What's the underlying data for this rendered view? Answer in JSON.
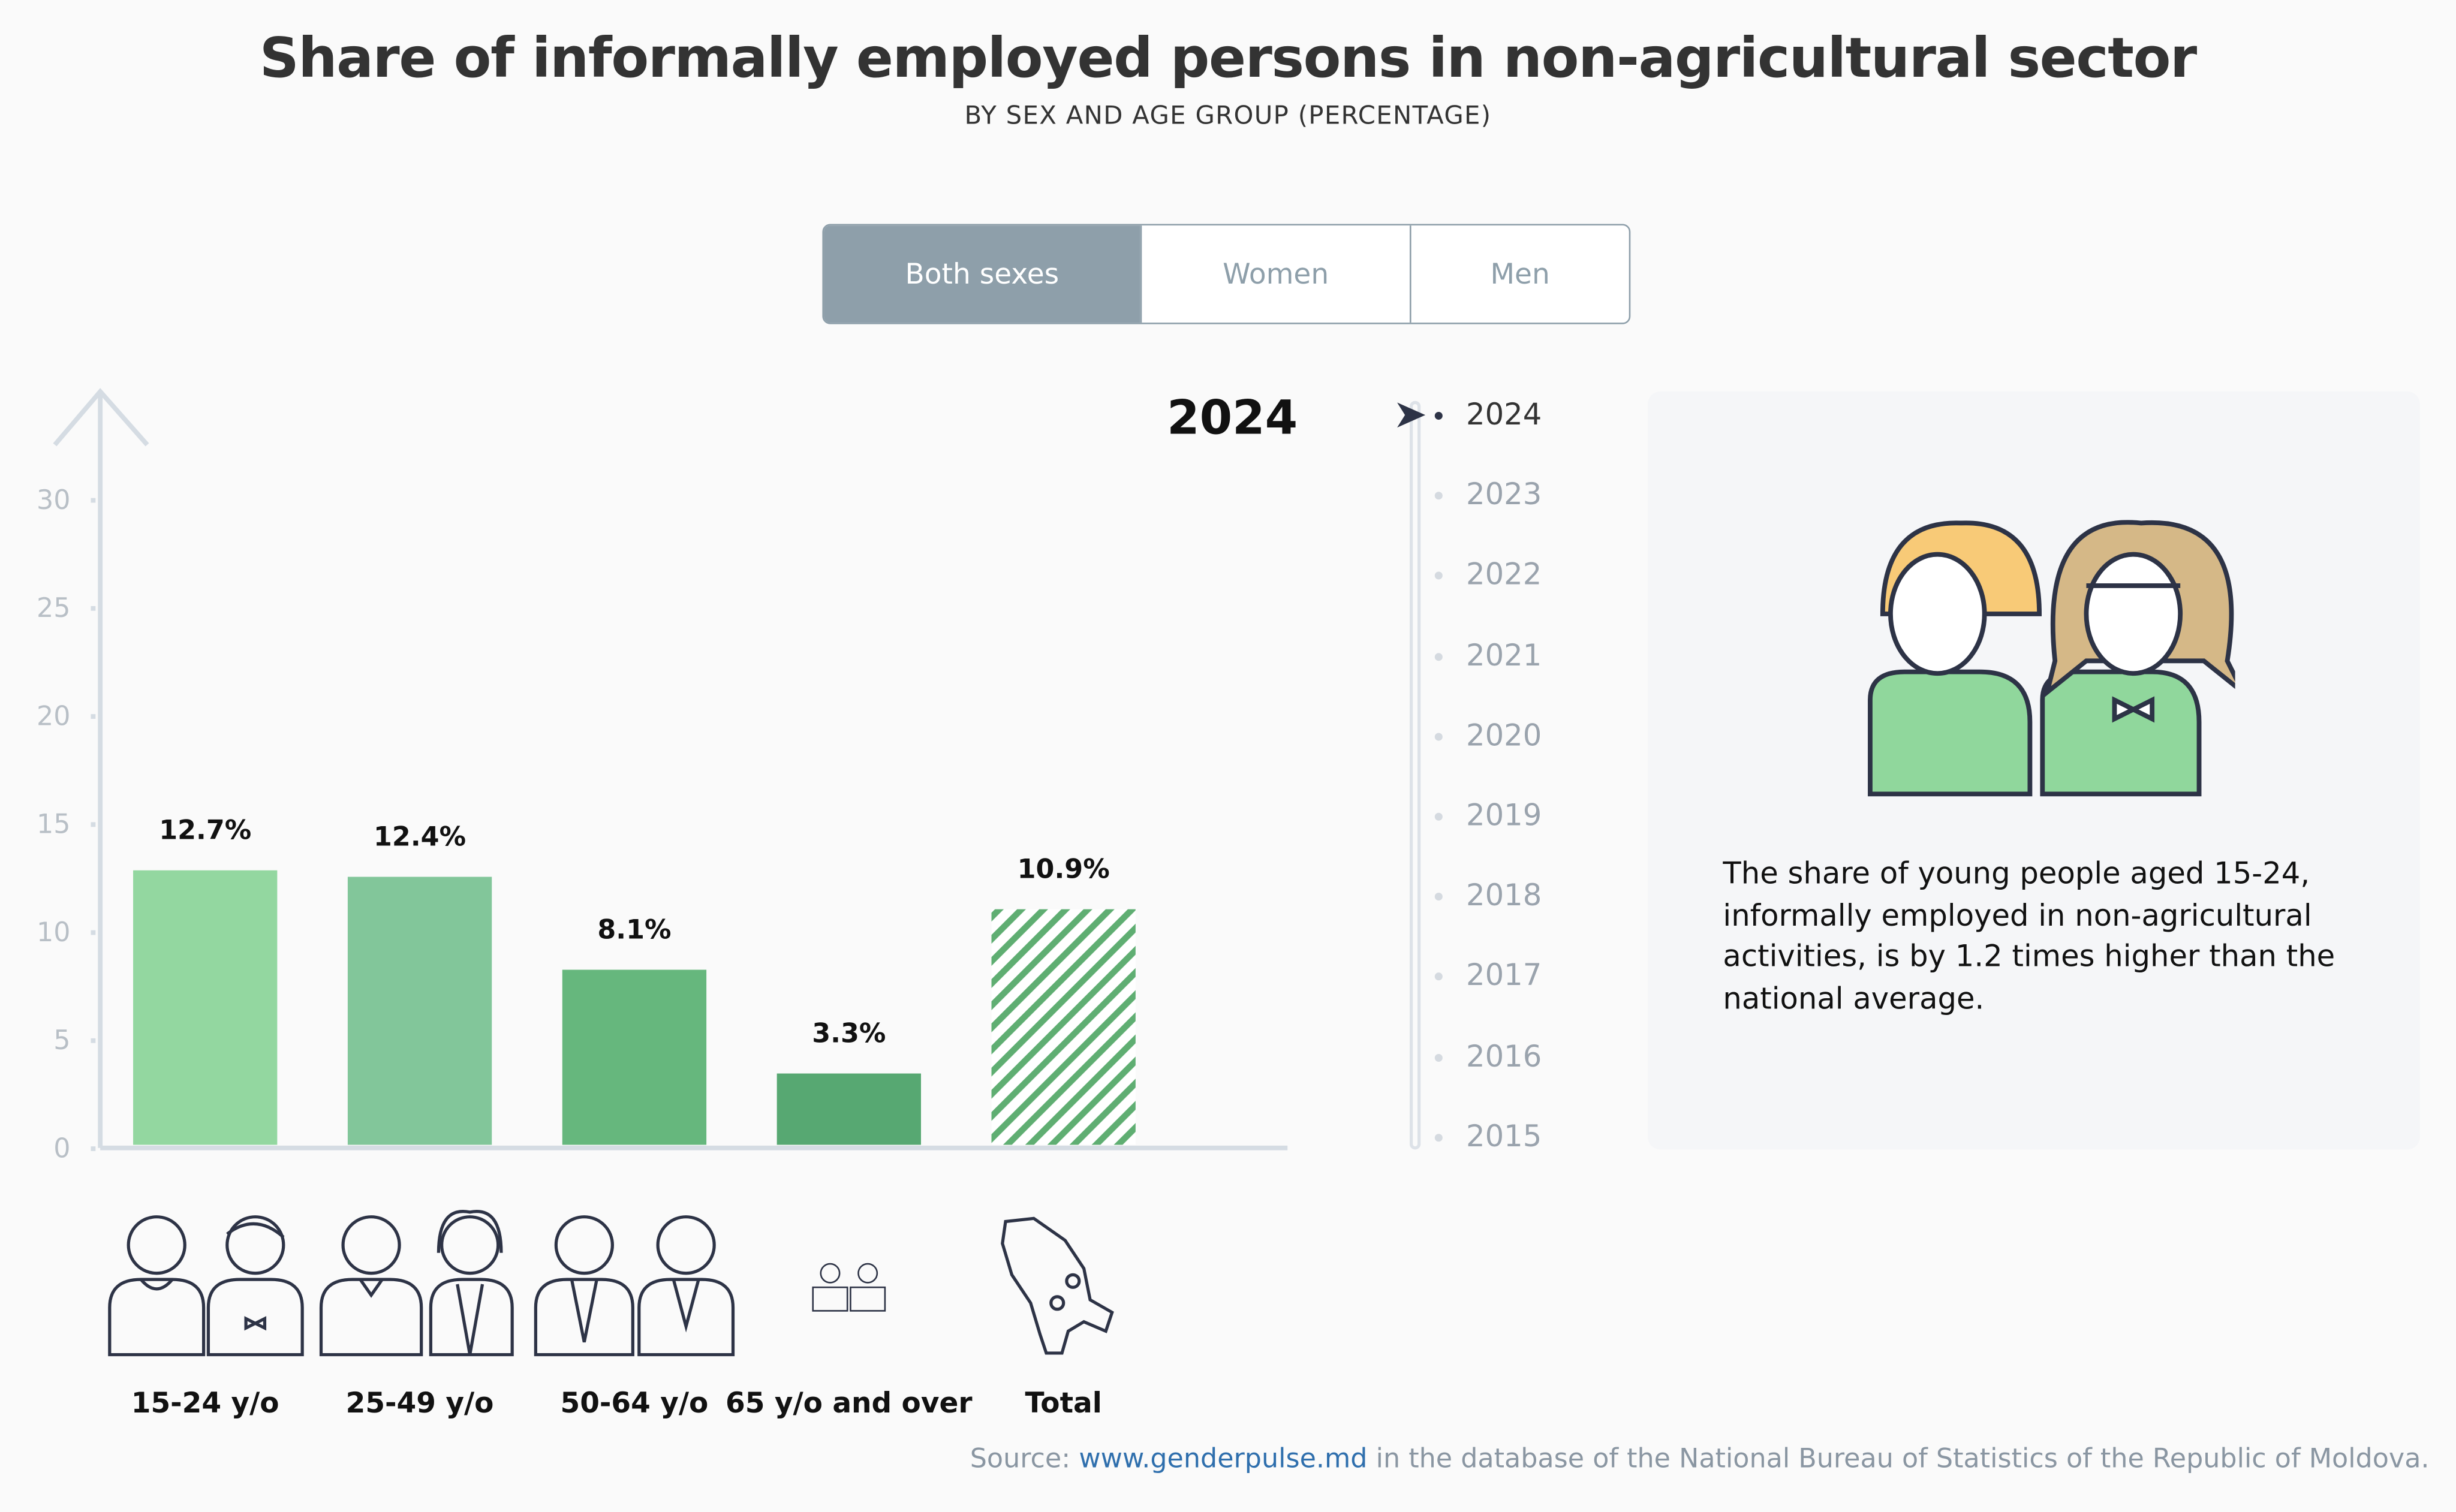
{
  "header": {
    "title": "Share of informally employed persons in non-agricultural sector",
    "subtitle": "BY SEX AND AGE GROUP (PERCENTAGE)"
  },
  "tabs": [
    {
      "label": "Both sexes",
      "active": true
    },
    {
      "label": "Women",
      "active": false
    },
    {
      "label": "Men",
      "active": false
    }
  ],
  "selected_year": "2024",
  "timeline": [
    "2024",
    "2023",
    "2022",
    "2021",
    "2020",
    "2019",
    "2018",
    "2017",
    "2016",
    "2015"
  ],
  "chart_data": {
    "type": "bar",
    "categories": [
      "15-24 y/o",
      "25-49 y/o",
      "50-64 y/o",
      "65 y/o and over",
      "Total"
    ],
    "values": [
      12.7,
      12.4,
      8.1,
      3.3,
      10.9
    ],
    "value_labels": [
      "12.7%",
      "12.4%",
      "8.1%",
      "3.3%",
      "10.9%"
    ],
    "colors": [
      "#93d7a0",
      "#82c69a",
      "#66b77d",
      "#57a872",
      "#5fae72"
    ],
    "hatched": [
      false,
      false,
      false,
      false,
      true
    ],
    "yticks": [
      0,
      5,
      10,
      15,
      20,
      25,
      30
    ],
    "ylim": [
      0,
      30
    ],
    "grid": false
  },
  "panel": {
    "text": "The share of young people aged 15-24, informally employed in non-agricultural activities, is by 1.2 times higher than the national average."
  },
  "source": {
    "prefix": "Source: ",
    "link": "www.genderpulse.md",
    "suffix": " in the database of the National Bureau of Statistics of the Republic of Moldova."
  }
}
